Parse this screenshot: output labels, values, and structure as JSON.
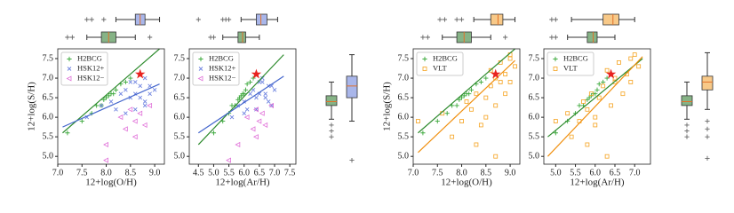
{
  "chart_data": [
    {
      "type": "scatter",
      "xlabel": "12+log(O/H)",
      "ylabel": "12+log(S/H)",
      "xlim": [
        7.0,
        9.2
      ],
      "ylim": [
        4.8,
        7.75
      ],
      "xticks": [
        {
          "value": 7,
          "label": "7.0"
        },
        7.5,
        {
          "value": 8,
          "label": "8.0"
        },
        8.5,
        {
          "value": 9,
          "label": "9.0"
        }
      ],
      "yticks": [
        {
          "value": 5,
          "label": "5.0"
        },
        5.5,
        {
          "value": 6,
          "label": "6.0"
        },
        6.5,
        {
          "value": 7,
          "label": "7.0"
        },
        7.5
      ],
      "legend": "upper left",
      "series": [
        {
          "name": "H2BCG",
          "color": "#3aa83a",
          "marker": "plus",
          "x": [
            7.2,
            7.5,
            7.7,
            7.8,
            7.9,
            7.95,
            8.0,
            8.05,
            8.1,
            8.15,
            8.2,
            8.3,
            8.4,
            8.5
          ],
          "y": [
            5.6,
            5.9,
            6.1,
            6.3,
            6.3,
            6.45,
            6.5,
            6.55,
            6.6,
            6.6,
            6.7,
            6.85,
            6.9,
            7.0
          ]
        },
        {
          "name": "HSK12+",
          "color": "#6f84e0",
          "marker": "x",
          "x": [
            7.6,
            7.9,
            8.1,
            8.2,
            8.3,
            8.4,
            8.5,
            8.5,
            8.6,
            8.6,
            8.7,
            8.7,
            8.8,
            8.8,
            8.9,
            8.9,
            9.0,
            8.4,
            8.6,
            8.8
          ],
          "y": [
            6.0,
            6.3,
            6.4,
            6.2,
            6.6,
            6.7,
            6.5,
            6.9,
            6.6,
            6.9,
            6.5,
            6.8,
            6.3,
            7.0,
            6.6,
            6.8,
            6.7,
            6.1,
            6.2,
            6.4
          ]
        },
        {
          "name": "HSK12−",
          "color": "#e070d8",
          "marker": "tri",
          "x": [
            8.0,
            8.3,
            8.4,
            8.5,
            8.6,
            8.7,
            8.8,
            8.9,
            8.0,
            8.6
          ],
          "y": [
            5.3,
            6.0,
            5.7,
            6.2,
            5.9,
            6.1,
            5.8,
            6.3,
            4.9,
            5.5
          ]
        }
      ],
      "fits": [
        {
          "color": "#2e8b2e",
          "x": [
            7.1,
            9.1
          ],
          "y": [
            5.6,
            7.75
          ]
        },
        {
          "color": "#4466cc",
          "x": [
            7.1,
            9.1
          ],
          "y": [
            5.75,
            6.85
          ]
        }
      ],
      "highlight": {
        "color": "#e8231f",
        "x": 8.7,
        "y": 7.1
      }
    },
    {
      "type": "scatter",
      "xlabel": "12+log(Ar/H)",
      "xlim": [
        4.2,
        7.7
      ],
      "ylim": [
        4.8,
        7.75
      ],
      "xticks": [
        4.5,
        {
          "value": 5,
          "label": "5.0"
        },
        5.5,
        {
          "value": 6,
          "label": "6.0"
        },
        6.5,
        {
          "value": 7,
          "label": "7.0"
        },
        7.5
      ],
      "yticks": [
        {
          "value": 5,
          "label": "5.0"
        },
        5.5,
        {
          "value": 6,
          "label": "6.0"
        },
        6.5,
        {
          "value": 7,
          "label": "7.0"
        },
        7.5
      ],
      "legend": "upper left",
      "series": [
        {
          "name": "H2BCG",
          "color": "#3aa83a",
          "marker": "plus",
          "x": [
            5.0,
            5.3,
            5.5,
            5.6,
            5.7,
            5.8,
            5.85,
            5.9,
            5.95,
            6.0,
            6.05,
            6.1,
            6.2,
            6.3
          ],
          "y": [
            5.6,
            5.9,
            6.1,
            6.3,
            6.3,
            6.45,
            6.5,
            6.55,
            6.6,
            6.6,
            6.7,
            6.85,
            6.9,
            7.0
          ]
        },
        {
          "name": "HSK12+",
          "color": "#6f84e0",
          "marker": "x",
          "x": [
            5.6,
            5.8,
            6.0,
            6.1,
            6.2,
            6.3,
            6.4,
            6.5,
            6.5,
            6.6,
            6.7,
            6.8,
            6.9,
            6.6,
            6.7,
            6.9,
            7.0,
            6.0,
            6.4,
            6.8
          ],
          "y": [
            6.0,
            6.3,
            6.4,
            6.2,
            6.6,
            6.7,
            6.5,
            6.9,
            6.6,
            6.9,
            6.5,
            6.8,
            6.3,
            7.0,
            6.6,
            6.8,
            6.7,
            6.1,
            6.2,
            6.4
          ]
        },
        {
          "name": "HSK12−",
          "color": "#e070d8",
          "marker": "tri",
          "x": [
            5.8,
            6.1,
            6.3,
            6.4,
            6.5,
            6.6,
            6.7,
            6.9,
            5.5,
            6.4
          ],
          "y": [
            5.3,
            6.0,
            5.7,
            6.2,
            5.9,
            6.1,
            5.8,
            6.3,
            4.9,
            5.5
          ]
        }
      ],
      "fits": [
        {
          "color": "#2e8b2e",
          "x": [
            4.5,
            7.3
          ],
          "y": [
            5.3,
            7.6
          ]
        },
        {
          "color": "#4466cc",
          "x": [
            4.5,
            7.3
          ],
          "y": [
            5.6,
            7.05
          ]
        }
      ],
      "highlight": {
        "color": "#e8231f",
        "x": 6.4,
        "y": 7.1
      }
    },
    {
      "type": "scatter",
      "xlabel": "12+log(O/H)",
      "ylabel": "12+log(S/H)",
      "xlim": [
        7.0,
        9.2
      ],
      "ylim": [
        4.8,
        7.75
      ],
      "xticks": [
        {
          "value": 7,
          "label": "7.0"
        },
        7.5,
        {
          "value": 8,
          "label": "8.0"
        },
        8.5,
        {
          "value": 9,
          "label": "9.0"
        }
      ],
      "yticks": [
        {
          "value": 5,
          "label": "5.0"
        },
        5.5,
        {
          "value": 6,
          "label": "6.0"
        },
        6.5,
        {
          "value": 7,
          "label": "7.0"
        },
        7.5
      ],
      "legend": "upper left",
      "series": [
        {
          "name": "H2BCG",
          "color": "#3aa83a",
          "marker": "plus",
          "x": [
            7.2,
            7.5,
            7.7,
            7.8,
            7.9,
            7.95,
            8.0,
            8.05,
            8.1,
            8.15,
            8.2,
            8.3,
            8.4,
            8.5
          ],
          "y": [
            5.6,
            5.9,
            6.1,
            6.3,
            6.3,
            6.45,
            6.5,
            6.55,
            6.6,
            6.6,
            6.7,
            6.85,
            6.9,
            7.0
          ]
        },
        {
          "name": "VLT",
          "color": "#f5a21e",
          "marker": "sq",
          "x": [
            7.1,
            7.6,
            7.8,
            8.0,
            8.1,
            8.2,
            8.3,
            8.4,
            8.5,
            8.6,
            8.6,
            8.7,
            8.7,
            8.8,
            8.8,
            8.9,
            8.9,
            9.0,
            9.0,
            9.1,
            8.5,
            8.3,
            8.7,
            9.0
          ],
          "y": [
            5.9,
            6.1,
            5.5,
            5.9,
            6.4,
            6.2,
            6.6,
            5.8,
            6.5,
            6.8,
            7.2,
            6.3,
            7.0,
            6.9,
            7.4,
            6.6,
            7.1,
            6.9,
            7.6,
            7.3,
            6.0,
            5.3,
            5.0,
            7.5
          ]
        }
      ],
      "fits": [
        {
          "color": "#2e8b2e",
          "x": [
            7.1,
            9.1
          ],
          "y": [
            5.6,
            7.75
          ]
        },
        {
          "color": "#f09010",
          "x": [
            7.1,
            9.1
          ],
          "y": [
            5.1,
            7.45
          ]
        }
      ],
      "highlight": {
        "color": "#e8231f",
        "x": 8.7,
        "y": 7.1
      }
    },
    {
      "type": "scatter",
      "xlabel": "12+log(Ar/H)",
      "xlim": [
        4.7,
        7.4
      ],
      "ylim": [
        4.8,
        7.75
      ],
      "xticks": [
        {
          "value": 5,
          "label": "5.0"
        },
        5.5,
        {
          "value": 6,
          "label": "6.0"
        },
        6.5,
        {
          "value": 7,
          "label": "7.0"
        }
      ],
      "yticks": [
        {
          "value": 5,
          "label": "5.0"
        },
        5.5,
        {
          "value": 6,
          "label": "6.0"
        },
        6.5,
        {
          "value": 7,
          "label": "7.0"
        },
        7.5
      ],
      "legend": "upper left",
      "series": [
        {
          "name": "H2BCG",
          "color": "#3aa83a",
          "marker": "plus",
          "x": [
            5.0,
            5.3,
            5.5,
            5.6,
            5.7,
            5.8,
            5.85,
            5.9,
            5.95,
            6.0,
            6.05,
            6.1,
            6.2,
            6.3
          ],
          "y": [
            5.6,
            5.9,
            6.1,
            6.3,
            6.3,
            6.45,
            6.5,
            6.55,
            6.6,
            6.6,
            6.7,
            6.85,
            6.9,
            7.0
          ]
        },
        {
          "name": "VLT",
          "color": "#f5a21e",
          "marker": "sq",
          "x": [
            5.0,
            5.3,
            5.4,
            5.6,
            5.7,
            5.8,
            5.9,
            6.0,
            6.1,
            6.2,
            6.3,
            6.4,
            6.5,
            6.5,
            6.6,
            6.7,
            6.8,
            6.9,
            7.0,
            7.1,
            6.0,
            5.8,
            6.3,
            6.9
          ],
          "y": [
            5.9,
            6.1,
            5.5,
            5.9,
            6.4,
            6.2,
            6.6,
            5.8,
            6.5,
            6.8,
            7.2,
            6.3,
            7.0,
            6.9,
            7.4,
            6.6,
            7.1,
            6.9,
            7.6,
            7.3,
            6.0,
            5.3,
            5.0,
            7.5
          ]
        }
      ],
      "fits": [
        {
          "color": "#2e8b2e",
          "x": [
            4.8,
            7.2
          ],
          "y": [
            5.5,
            7.5
          ]
        },
        {
          "color": "#f09010",
          "x": [
            4.8,
            7.2
          ],
          "y": [
            5.0,
            7.55
          ]
        }
      ],
      "highlight": {
        "color": "#e8231f",
        "x": 6.4,
        "y": 7.1
      }
    },
    {
      "type": "box",
      "orientation": "horizontal",
      "lim": [
        7.0,
        9.2
      ],
      "boxes": [
        {
          "color": "#a9b6ea",
          "whislo": 8.2,
          "q1": 8.6,
          "med": 8.7,
          "q3": 8.8,
          "whishi": 9.1,
          "fliers": [
            7.6,
            7.7,
            7.95
          ]
        },
        {
          "color": "#86b386",
          "whislo": 7.6,
          "q1": 7.9,
          "med": 8.05,
          "q3": 8.2,
          "whishi": 8.6,
          "fliers": [
            7.2,
            7.3,
            8.9
          ]
        }
      ]
    },
    {
      "type": "box",
      "orientation": "horizontal",
      "lim": [
        4.2,
        7.7
      ],
      "boxes": [
        {
          "color": "#a9b6ea",
          "whislo": 5.9,
          "q1": 6.4,
          "med": 6.55,
          "q3": 6.75,
          "whishi": 7.1,
          "fliers": [
            4.5,
            5.3,
            5.4,
            5.5
          ]
        },
        {
          "color": "#86b386",
          "whislo": 5.3,
          "q1": 5.8,
          "med": 5.95,
          "q3": 6.05,
          "whishi": 6.5,
          "fliers": [
            4.9,
            5.0
          ]
        }
      ]
    },
    {
      "type": "box",
      "orientation": "vertical",
      "lim": [
        4.8,
        7.75
      ],
      "boxes": [
        {
          "color": "#86b386",
          "whislo": 5.95,
          "q1": 6.3,
          "med": 6.4,
          "q3": 6.55,
          "whishi": 6.9,
          "fliers": [
            5.5,
            5.65,
            5.8
          ]
        },
        {
          "color": "#a9b6ea",
          "whislo": 5.9,
          "q1": 6.5,
          "med": 6.8,
          "q3": 7.05,
          "whishi": 7.6,
          "fliers": [
            4.9
          ]
        }
      ]
    },
    {
      "type": "box",
      "orientation": "horizontal",
      "lim": [
        7.0,
        9.2
      ],
      "boxes": [
        {
          "color": "#f8c988",
          "whislo": 8.25,
          "q1": 8.6,
          "med": 8.75,
          "q3": 8.85,
          "whishi": 9.1,
          "fliers": [
            7.55,
            7.65,
            7.9,
            8.0
          ]
        },
        {
          "color": "#86b386",
          "whislo": 7.6,
          "q1": 7.9,
          "med": 8.05,
          "q3": 8.2,
          "whishi": 8.6,
          "fliers": [
            7.2,
            7.3,
            8.9
          ]
        }
      ]
    },
    {
      "type": "box",
      "orientation": "horizontal",
      "lim": [
        4.7,
        7.4
      ],
      "boxes": [
        {
          "color": "#f8c988",
          "whislo": 5.4,
          "q1": 6.2,
          "med": 6.45,
          "q3": 6.6,
          "whishi": 7.0,
          "fliers": [
            4.9,
            5.0
          ]
        },
        {
          "color": "#86b386",
          "whislo": 5.3,
          "q1": 5.8,
          "med": 5.95,
          "q3": 6.05,
          "whishi": 6.5,
          "fliers": [
            4.9,
            5.0
          ]
        }
      ]
    },
    {
      "type": "box",
      "orientation": "vertical",
      "lim": [
        4.8,
        7.75
      ],
      "boxes": [
        {
          "color": "#86b386",
          "whislo": 5.95,
          "q1": 6.3,
          "med": 6.4,
          "q3": 6.55,
          "whishi": 6.9,
          "fliers": [
            5.5,
            5.65,
            5.8
          ]
        },
        {
          "color": "#f8c988",
          "whislo": 6.2,
          "q1": 6.7,
          "med": 6.9,
          "q3": 7.05,
          "whishi": 7.65,
          "fliers": [
            4.95,
            5.5,
            5.7,
            5.9
          ]
        }
      ]
    }
  ]
}
